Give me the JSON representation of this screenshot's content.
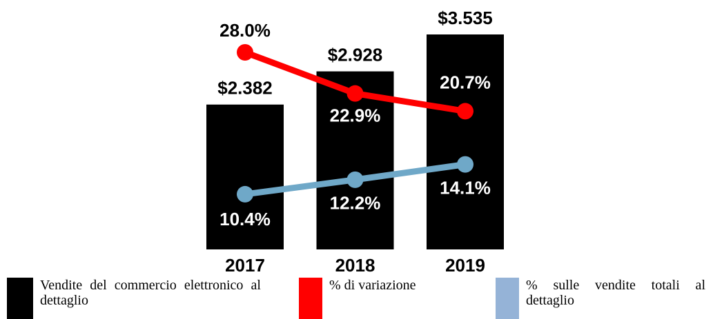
{
  "chart_data": {
    "type": "bar",
    "categories": [
      "2017",
      "2018",
      "2019"
    ],
    "series": [
      {
        "name": "Vendite del commercio elettronico al dettaglio",
        "color": "#000000",
        "values": [
          2382,
          2928,
          3535
        ],
        "value_labels": [
          "$2.382",
          "$2.928",
          "$3.535"
        ]
      },
      {
        "name": "% di variazione",
        "type": "line",
        "axis": "y2",
        "color": "#ff0000",
        "values": [
          28.0,
          22.9,
          20.7
        ],
        "value_labels": [
          "28.0%",
          "22.9%",
          "20.7%"
        ]
      },
      {
        "name": "% sulle vendite totali al dettaglio",
        "type": "line",
        "axis": "y2",
        "color": "#6fa8c8",
        "legend_color": "#95b3d7",
        "values": [
          10.4,
          12.2,
          14.1
        ],
        "value_labels": [
          "10.4%",
          "12.2%",
          "14.1%"
        ]
      }
    ]
  }
}
